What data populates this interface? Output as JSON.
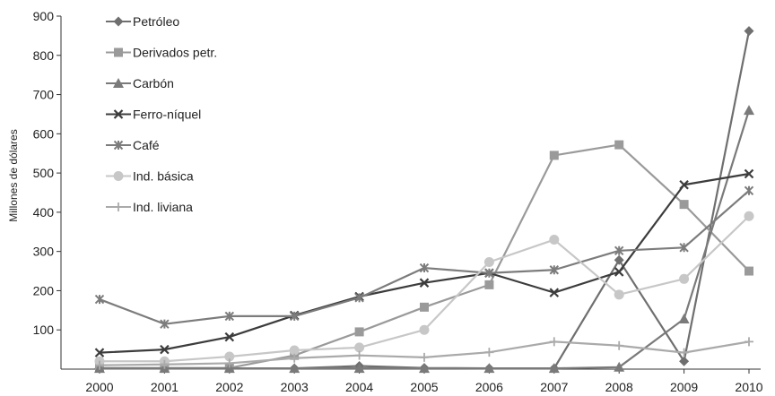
{
  "chart_data": {
    "type": "line",
    "title": "",
    "xlabel": "",
    "ylabel": "Millones de dólares",
    "x": [
      "2000",
      "2001",
      "2002",
      "2003",
      "2004",
      "2005",
      "2006",
      "2007",
      "2008",
      "2009",
      "2010"
    ],
    "ylim": [
      0,
      900
    ],
    "yticks": [
      900,
      800,
      700,
      600,
      500,
      400,
      300,
      200,
      100
    ],
    "grid": false,
    "legend_position": "top-left",
    "series": [
      {
        "name": "Petróleo",
        "marker": "diamond",
        "color": "#6f6f6f",
        "values": [
          2,
          2,
          2,
          2,
          8,
          3,
          2,
          2,
          278,
          20,
          862
        ]
      },
      {
        "name": "Derivados petr.",
        "marker": "square",
        "color": "#9a9a9a",
        "values": [
          3,
          3,
          3,
          35,
          95,
          158,
          215,
          545,
          572,
          420,
          250
        ]
      },
      {
        "name": "Carbón",
        "marker": "triangle",
        "color": "#7a7a7a",
        "values": [
          2,
          2,
          2,
          2,
          2,
          2,
          2,
          2,
          5,
          128,
          660
        ]
      },
      {
        "name": "Ferro-níquel",
        "marker": "x",
        "color": "#3c3c3c",
        "values": [
          42,
          50,
          82,
          137,
          185,
          220,
          245,
          195,
          248,
          470,
          498
        ]
      },
      {
        "name": "Café",
        "marker": "star",
        "color": "#7c7c7c",
        "values": [
          178,
          115,
          135,
          135,
          182,
          258,
          245,
          253,
          302,
          310,
          455
        ]
      },
      {
        "name": "Ind. básica",
        "marker": "circle",
        "color": "#c7c7c7",
        "values": [
          20,
          20,
          32,
          48,
          55,
          100,
          273,
          330,
          190,
          230,
          390
        ]
      },
      {
        "name": "Ind. liviana",
        "marker": "plus",
        "color": "#aaaaaa",
        "values": [
          10,
          12,
          15,
          28,
          35,
          30,
          43,
          70,
          60,
          42,
          70
        ]
      }
    ]
  }
}
